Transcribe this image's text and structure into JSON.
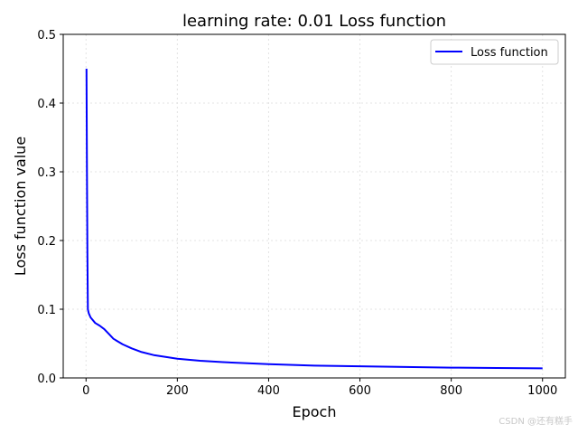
{
  "chart_data": {
    "type": "line",
    "title": "learning rate: 0.01 Loss function",
    "xlabel": "Epoch",
    "ylabel": "Loss function value",
    "xlim": [
      -50,
      1050
    ],
    "ylim": [
      0,
      0.5
    ],
    "xticks": [
      0,
      200,
      400,
      600,
      800,
      1000
    ],
    "yticks": [
      0.0,
      0.1,
      0.2,
      0.3,
      0.4,
      0.5
    ],
    "xtick_labels": [
      "0",
      "200",
      "400",
      "600",
      "800",
      "1000"
    ],
    "ytick_labels": [
      "0.0",
      "0.1",
      "0.2",
      "0.3",
      "0.4",
      "0.5"
    ],
    "grid": true,
    "legend_position": "top-right",
    "series": [
      {
        "name": "Loss function",
        "color": "#0000ff",
        "x": [
          1,
          2,
          3,
          4,
          6,
          10,
          20,
          30,
          40,
          50,
          60,
          80,
          100,
          120,
          150,
          200,
          250,
          300,
          400,
          500,
          600,
          700,
          800,
          900,
          1000
        ],
        "y": [
          0.45,
          0.3,
          0.18,
          0.1,
          0.094,
          0.088,
          0.08,
          0.076,
          0.071,
          0.064,
          0.057,
          0.049,
          0.043,
          0.038,
          0.033,
          0.028,
          0.025,
          0.023,
          0.02,
          0.018,
          0.017,
          0.016,
          0.015,
          0.0145,
          0.014
        ]
      }
    ]
  },
  "watermark": "CSDN @还有糕手"
}
